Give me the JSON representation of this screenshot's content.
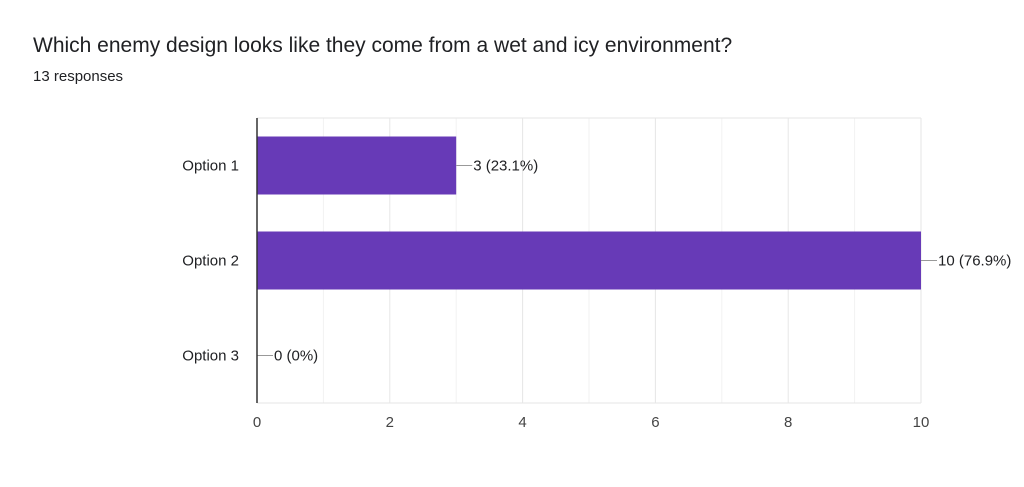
{
  "title": "Which enemy design looks like they come from a wet and icy environment?",
  "subtitle": "13 responses",
  "colors": {
    "bar": "#673ab7",
    "grid": "#e6e6e6",
    "axis": "#333333",
    "leader": "#999999"
  },
  "chart_data": {
    "type": "bar",
    "orientation": "horizontal",
    "categories": [
      "Option 1",
      "Option 2",
      "Option 3"
    ],
    "values": [
      3,
      10,
      0
    ],
    "value_labels": [
      "3 (23.1%)",
      "10 (76.9%)",
      "0 (0%)"
    ],
    "xlim": [
      0,
      10
    ],
    "xticks": [
      0,
      2,
      4,
      6,
      8,
      10
    ],
    "grid": true
  }
}
